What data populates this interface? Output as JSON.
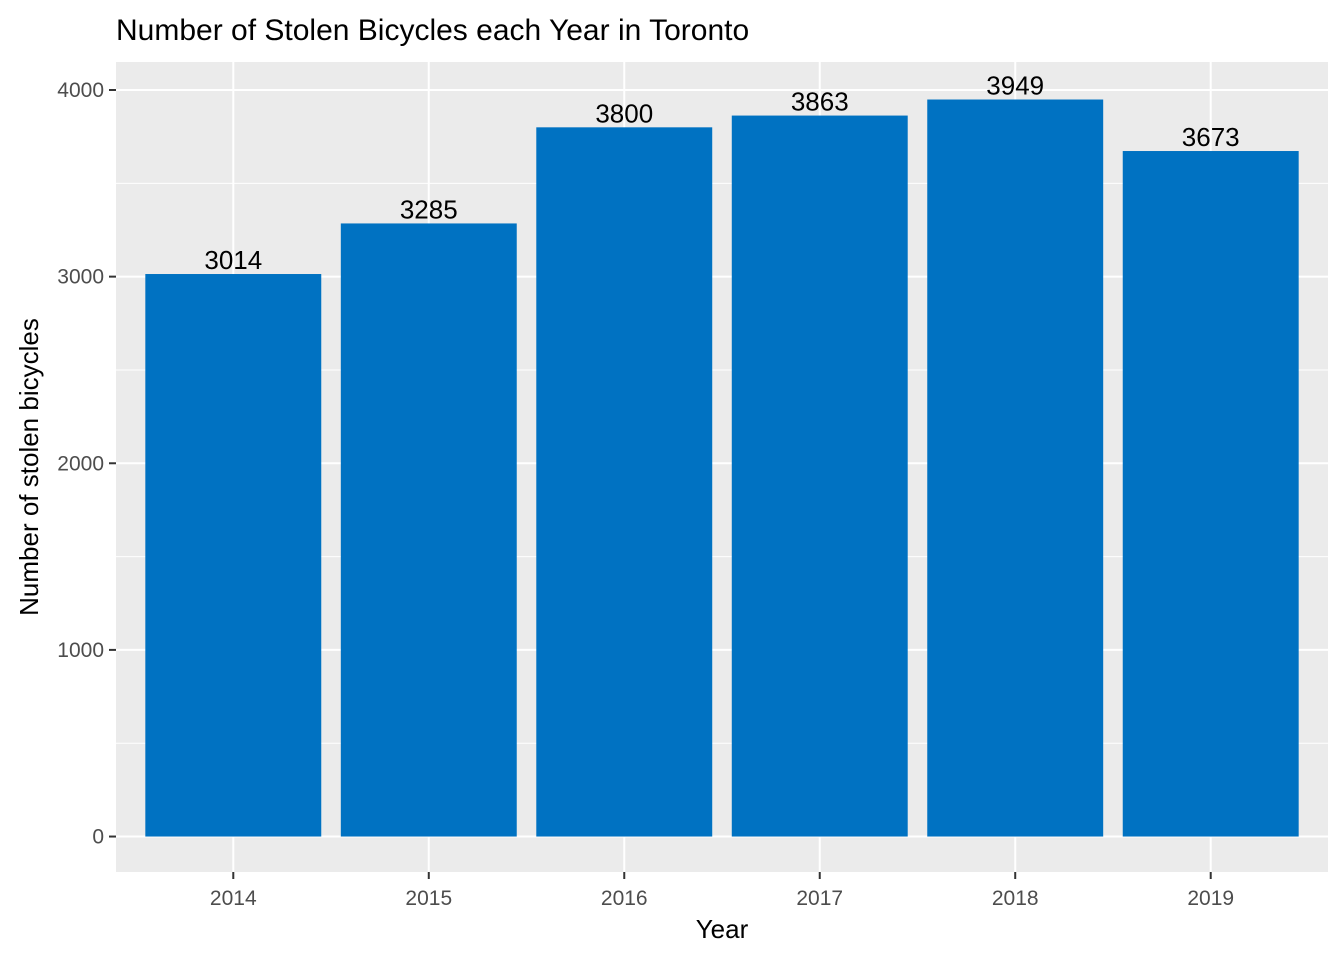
{
  "chart_data": {
    "type": "bar",
    "title": "Number of Stolen Bicycles each Year in Toronto",
    "xlabel": "Year",
    "ylabel": "Number of stolen bicycles",
    "categories": [
      "2014",
      "2015",
      "2016",
      "2017",
      "2018",
      "2019"
    ],
    "values": [
      3014,
      3285,
      3800,
      3863,
      3949,
      3673
    ],
    "data_labels": [
      "3014",
      "3285",
      "3800",
      "3863",
      "3949",
      "3673"
    ],
    "ylim": [
      -190,
      4150
    ],
    "yticks": [
      0,
      1000,
      2000,
      3000,
      4000
    ],
    "ytick_labels": [
      "0",
      "1000",
      "2000",
      "3000",
      "4000"
    ],
    "grid": true,
    "legend": "none",
    "colors": {
      "bar": "#0072C2",
      "panel": "#EBEBEB",
      "grid": "#FFFFFF",
      "text": "#000000",
      "tick_text": "#4D4D4D",
      "tick_mark": "#333333"
    }
  }
}
